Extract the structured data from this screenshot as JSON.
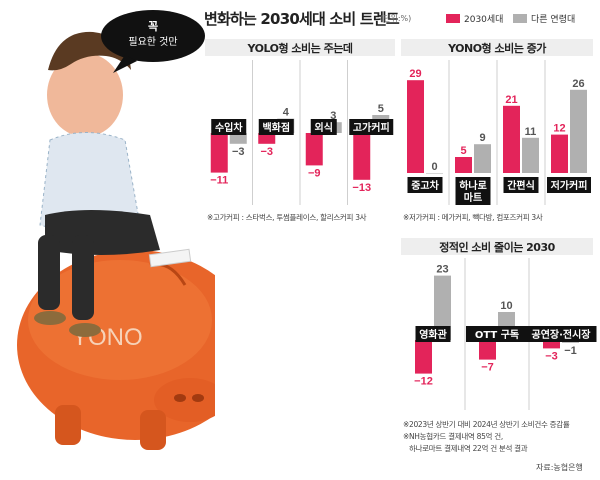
{
  "title": "변화하는 2030세대 소비 트렌드",
  "unit": "(단위:%)",
  "legend": {
    "items": [
      {
        "label": "2030세대",
        "color": "#e3245a"
      },
      {
        "label": "다른 연령대",
        "color": "#b0b0b0"
      }
    ]
  },
  "illustration": {
    "speech_line1": "꼭",
    "speech_line2": "필요한 것만",
    "pig_label": "YONO"
  },
  "panels": {
    "yolo": {
      "header": "YOLO형 소비는 주는데",
      "note": "※고가커피 : 스타벅스, 투썸플레이스, 할리스커피 3사"
    },
    "yono": {
      "header": "YONO형 소비는 증가",
      "note": "※저가커피 : 메가커피, 빽다방, 컴포즈커피 3사"
    },
    "fixed": {
      "header": "정적인 소비 줄이는 2030"
    }
  },
  "footnotes": {
    "line1": "※2023년 상반기 대비 2024년 상반기 소비건수 증감률",
    "line2": "※NH농협카드 결제내역 85억 건,",
    "line3": "하나로마트 결제내역 22억 건 분석 결과"
  },
  "source": "자료:농협은행",
  "chart_data": [
    {
      "type": "bar",
      "title": "YOLO형 소비는 주는데",
      "categories": [
        "수입차",
        "백화점",
        "외식",
        "고가커피"
      ],
      "series": [
        {
          "name": "2030세대",
          "values": [
            -11,
            -3,
            -9,
            -13
          ]
        },
        {
          "name": "다른 연령대",
          "values": [
            -3,
            4,
            3,
            5
          ]
        }
      ]
    },
    {
      "type": "bar",
      "title": "YONO형 소비는 증가",
      "categories": [
        "중고차",
        "하나로\n마트",
        "간편식",
        "저가커피"
      ],
      "series": [
        {
          "name": "2030세대",
          "values": [
            29,
            5,
            21,
            12
          ]
        },
        {
          "name": "다른 연령대",
          "values": [
            0,
            9,
            11,
            26
          ]
        }
      ]
    },
    {
      "type": "bar",
      "title": "정적인 소비 줄이는 2030",
      "categories": [
        "영화관",
        "OTT 구독",
        "공연장·전시장"
      ],
      "series": [
        {
          "name": "2030세대",
          "values": [
            -12,
            -7,
            -3
          ]
        },
        {
          "name": "다른 연령대",
          "values": [
            23,
            10,
            -1
          ]
        }
      ]
    }
  ]
}
